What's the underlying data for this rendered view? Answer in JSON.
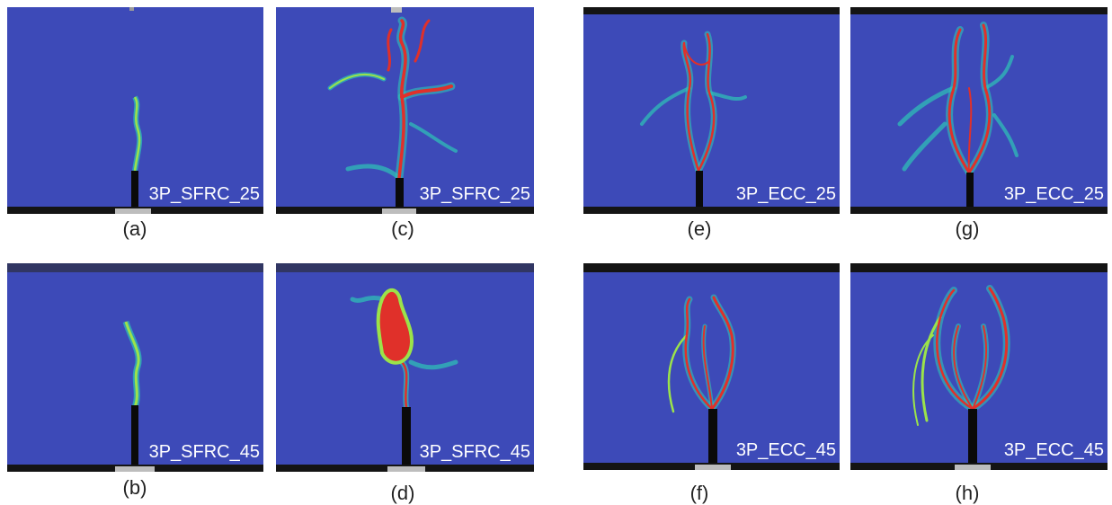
{
  "panels": [
    {
      "label": "3P_SFRC_25",
      "caption": "(a)"
    },
    {
      "label": "3P_SFRC_45",
      "caption": "(b)"
    },
    {
      "label": "3P_SFRC_25",
      "caption": "(c)"
    },
    {
      "label": "3P_SFRC_45",
      "caption": "(d)"
    },
    {
      "label": "3P_ECC_25",
      "caption": "(e)"
    },
    {
      "label": "3P_ECC_45",
      "caption": "(f)"
    },
    {
      "label": "3P_ECC_25",
      "caption": "(g)"
    },
    {
      "label": "3P_ECC_45",
      "caption": "(h)"
    }
  ],
  "colors": {
    "background_blue": "#3d4ab8",
    "crack_low": "#2ec4b6",
    "crack_mid": "#9be34a",
    "crack_high": "#e0302a",
    "notch": "#0a0a0a"
  }
}
